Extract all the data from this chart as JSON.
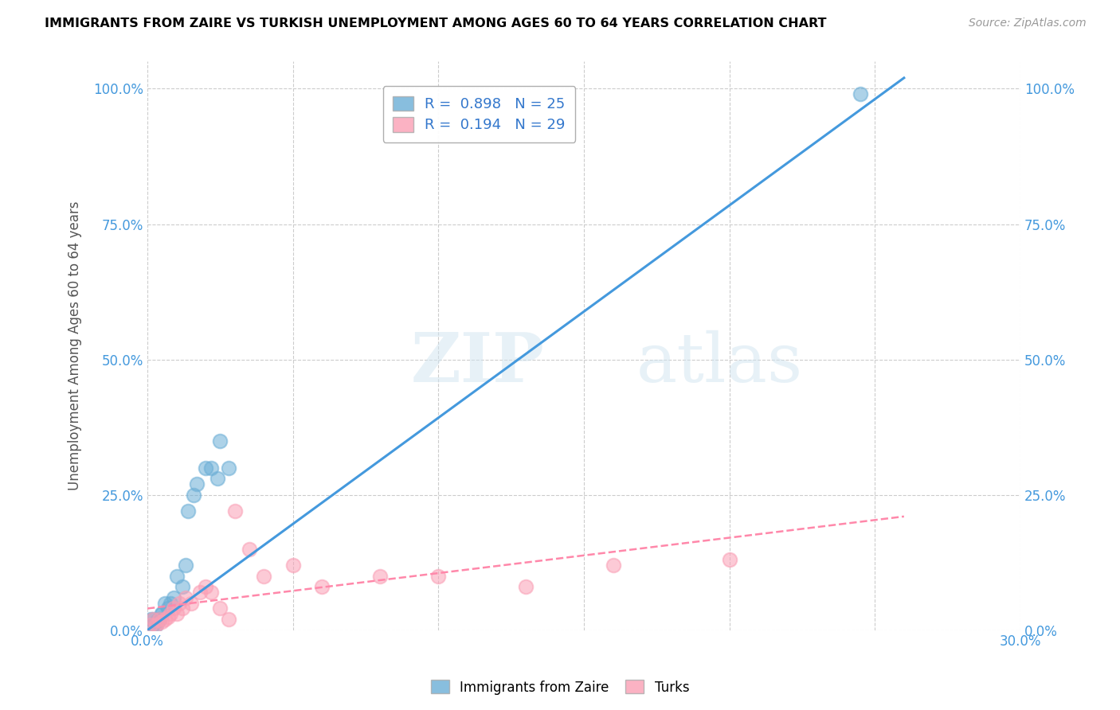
{
  "title": "IMMIGRANTS FROM ZAIRE VS TURKISH UNEMPLOYMENT AMONG AGES 60 TO 64 YEARS CORRELATION CHART",
  "source": "Source: ZipAtlas.com",
  "ylabel_label": "Unemployment Among Ages 60 to 64 years",
  "xlim": [
    0.0,
    0.3
  ],
  "ylim": [
    0.0,
    1.05
  ],
  "watermark_zip": "ZIP",
  "watermark_atlas": "atlas",
  "legend_r1": "R =  0.898",
  "legend_n1": "N = 25",
  "legend_r2": "R =  0.194",
  "legend_n2": "N = 29",
  "legend_label1": "Immigrants from Zaire",
  "legend_label2": "Turks",
  "blue_color": "#6baed6",
  "pink_color": "#fa9fb5",
  "blue_scatter": {
    "x": [
      0.001,
      0.002,
      0.002,
      0.003,
      0.003,
      0.004,
      0.004,
      0.005,
      0.005,
      0.006,
      0.007,
      0.008,
      0.009,
      0.01,
      0.012,
      0.013,
      0.014,
      0.016,
      0.017,
      0.02,
      0.022,
      0.024,
      0.025,
      0.028,
      0.245
    ],
    "y": [
      0.02,
      0.01,
      0.02,
      0.01,
      0.015,
      0.02,
      0.02,
      0.03,
      0.03,
      0.05,
      0.04,
      0.05,
      0.06,
      0.1,
      0.08,
      0.12,
      0.22,
      0.25,
      0.27,
      0.3,
      0.3,
      0.28,
      0.35,
      0.3,
      0.99
    ]
  },
  "pink_scatter": {
    "x": [
      0.001,
      0.002,
      0.003,
      0.004,
      0.005,
      0.006,
      0.007,
      0.008,
      0.009,
      0.01,
      0.011,
      0.012,
      0.013,
      0.015,
      0.018,
      0.02,
      0.022,
      0.025,
      0.028,
      0.03,
      0.035,
      0.04,
      0.05,
      0.06,
      0.08,
      0.1,
      0.13,
      0.16,
      0.2
    ],
    "y": [
      0.01,
      0.02,
      0.01,
      0.02,
      0.015,
      0.02,
      0.025,
      0.03,
      0.04,
      0.03,
      0.05,
      0.04,
      0.06,
      0.05,
      0.07,
      0.08,
      0.07,
      0.04,
      0.02,
      0.22,
      0.15,
      0.1,
      0.12,
      0.08,
      0.1,
      0.1,
      0.08,
      0.12,
      0.13
    ]
  },
  "blue_line": {
    "x": [
      0.0,
      0.26
    ],
    "y": [
      0.0,
      1.02
    ]
  },
  "pink_line": {
    "x": [
      0.0,
      0.26
    ],
    "y": [
      0.04,
      0.21
    ]
  },
  "ytick_values": [
    0.0,
    0.25,
    0.5,
    0.75,
    1.0
  ],
  "ytick_labels": [
    "0.0%",
    "25.0%",
    "50.0%",
    "75.0%",
    "100.0%"
  ],
  "xtick_values": [
    0.0,
    0.05,
    0.1,
    0.15,
    0.2,
    0.25,
    0.3
  ],
  "xtick_labels": [
    "0.0%",
    "",
    "",
    "",
    "",
    "",
    "30.0%"
  ]
}
